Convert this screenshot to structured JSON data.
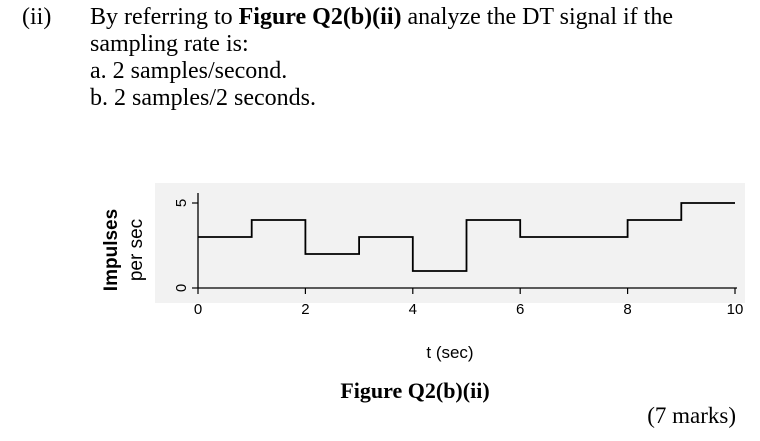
{
  "question": {
    "number": "(ii)",
    "line1_pre": "By referring to ",
    "line1_bold": "Figure Q2(b)(ii)",
    "line1_post": " analyze the DT signal if the",
    "line2": "sampling rate is:",
    "option_a": "a. 2 samples/second.",
    "option_b": "b. 2 samples/2 seconds."
  },
  "chart_data": {
    "type": "line",
    "step": true,
    "ylabel_line1": "Impulses",
    "ylabel_line2": "per sec",
    "xlabel": "t (sec)",
    "x_ticks": [
      "0",
      "2",
      "4",
      "6",
      "8",
      "10"
    ],
    "y_ticks": [
      "0",
      "5"
    ],
    "xlim": [
      0,
      10
    ],
    "ylim": [
      0,
      5
    ],
    "series": [
      {
        "segments": [
          {
            "x0": 0,
            "x1": 1,
            "y": 3
          },
          {
            "x0": 1,
            "x1": 2,
            "y": 4
          },
          {
            "x0": 2,
            "x1": 3,
            "y": 2
          },
          {
            "x0": 3,
            "x1": 4,
            "y": 3
          },
          {
            "x0": 4,
            "x1": 5,
            "y": 1
          },
          {
            "x0": 5,
            "x1": 6,
            "y": 4
          },
          {
            "x0": 6,
            "x1": 8,
            "y": 3
          },
          {
            "x0": 8,
            "x1": 9,
            "y": 4
          },
          {
            "x0": 9,
            "x1": 10,
            "y": 5
          }
        ]
      }
    ],
    "colors": {
      "axis": "#000000",
      "line": "#000000",
      "background": "#f2f2f2"
    }
  },
  "figure_caption": "Figure Q2(b)(ii)",
  "marks": "(7 marks)"
}
